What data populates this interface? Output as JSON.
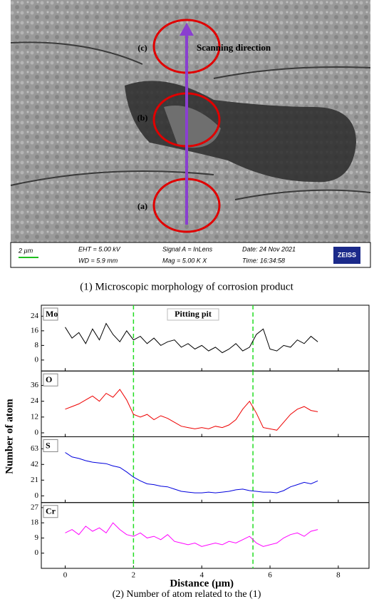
{
  "figure": {
    "image": {
      "labels": [
        "(c)",
        "(b)",
        "(a)"
      ],
      "arrow_label": "Scanning direction",
      "info": {
        "scale": "2 µm",
        "eht": "EHT =  5.00 kV",
        "wd": "WD =  5.9 mm",
        "signal": "Signal A = InLens",
        "mag": "Mag =  5.00 K X",
        "date": "Date: 24 Nov 2021",
        "time": "Time: 16:34:58",
        "brand": "ZEISS"
      }
    },
    "caption_top": "(1) Microscopic morphology of corrosion product",
    "ylabel": "Number of atom",
    "caption_bottom": "(2) Number of atom related to the (1)"
  },
  "chart_data": [
    {
      "type": "line",
      "annotation": "Pitting pit",
      "vlines": [
        2,
        5.5
      ],
      "x": [
        0,
        0.2,
        0.4,
        0.6,
        0.8,
        1,
        1.2,
        1.4,
        1.6,
        1.8,
        2,
        2.2,
        2.4,
        2.6,
        2.8,
        3,
        3.2,
        3.4,
        3.6,
        3.8,
        4,
        4.2,
        4.4,
        4.6,
        4.8,
        5,
        5.2,
        5.4,
        5.6,
        5.8,
        6,
        6.2,
        6.4,
        6.6,
        6.8,
        7,
        7.2,
        7.4
      ],
      "xlim": [
        -0.7,
        8.9
      ],
      "ylim": [
        -6,
        30
      ],
      "yticks": [
        0,
        8,
        16,
        24
      ],
      "series": [
        {
          "name": "Mo",
          "color": "#000000",
          "values": [
            18,
            12,
            15,
            9,
            17,
            11,
            20,
            14,
            10,
            16,
            11,
            13,
            9,
            12,
            8,
            10,
            11,
            7,
            9,
            6,
            8,
            5,
            7,
            4,
            6,
            9,
            5,
            7,
            14,
            17,
            6,
            5,
            8,
            7,
            11,
            9,
            13,
            10
          ]
        }
      ]
    },
    {
      "type": "line",
      "vlines": [
        2,
        5.5
      ],
      "x": [
        0,
        0.2,
        0.4,
        0.6,
        0.8,
        1,
        1.2,
        1.4,
        1.6,
        1.8,
        2,
        2.2,
        2.4,
        2.6,
        2.8,
        3,
        3.2,
        3.4,
        3.6,
        3.8,
        4,
        4.2,
        4.4,
        4.6,
        4.8,
        5,
        5.2,
        5.4,
        5.6,
        5.8,
        6,
        6.2,
        6.4,
        6.6,
        6.8,
        7,
        7.2,
        7.4
      ],
      "xlim": [
        -0.7,
        8.9
      ],
      "ylim": [
        -3,
        47
      ],
      "yticks": [
        0,
        12,
        24,
        36
      ],
      "series": [
        {
          "name": "O",
          "color": "#ee0000",
          "values": [
            18,
            20,
            22,
            25,
            28,
            24,
            30,
            27,
            33,
            25,
            14,
            12,
            14,
            10,
            13,
            11,
            8,
            5,
            4,
            3,
            4,
            3,
            5,
            4,
            6,
            10,
            18,
            24,
            15,
            4,
            3,
            2,
            8,
            14,
            18,
            20,
            17,
            16
          ]
        }
      ]
    },
    {
      "type": "line",
      "vlines": [
        2,
        5.5
      ],
      "x": [
        0,
        0.2,
        0.4,
        0.6,
        0.8,
        1,
        1.2,
        1.4,
        1.6,
        1.8,
        2,
        2.2,
        2.4,
        2.6,
        2.8,
        3,
        3.2,
        3.4,
        3.6,
        3.8,
        4,
        4.2,
        4.4,
        4.6,
        4.8,
        5,
        5.2,
        5.4,
        5.6,
        5.8,
        6,
        6.2,
        6.4,
        6.6,
        6.8,
        7,
        7.2,
        7.4
      ],
      "xlim": [
        -0.7,
        8.9
      ],
      "ylim": [
        -9,
        79
      ],
      "yticks": [
        0,
        21,
        42,
        63
      ],
      "series": [
        {
          "name": "S",
          "color": "#0000dd",
          "values": [
            58,
            52,
            50,
            47,
            45,
            44,
            43,
            40,
            38,
            32,
            25,
            20,
            16,
            15,
            13,
            12,
            9,
            6,
            5,
            4,
            4,
            5,
            4,
            5,
            6,
            8,
            9,
            7,
            6,
            5,
            5,
            4,
            7,
            12,
            15,
            18,
            16,
            20
          ]
        }
      ]
    },
    {
      "type": "line",
      "vlines": [
        2,
        5.5
      ],
      "xlabel": "Distance (μm)",
      "x": [
        0,
        0.2,
        0.4,
        0.6,
        0.8,
        1,
        1.2,
        1.4,
        1.6,
        1.8,
        2,
        2.2,
        2.4,
        2.6,
        2.8,
        3,
        3.2,
        3.4,
        3.6,
        3.8,
        4,
        4.2,
        4.4,
        4.6,
        4.8,
        5,
        5.2,
        5.4,
        5.6,
        5.8,
        6,
        6.2,
        6.4,
        6.6,
        6.8,
        7,
        7.2,
        7.4
      ],
      "xlim": [
        -0.7,
        8.9
      ],
      "xticks": [
        0,
        2,
        4,
        6,
        8
      ],
      "ylim": [
        -9,
        30
      ],
      "yticks": [
        0,
        9,
        18,
        27
      ],
      "series": [
        {
          "name": "Cr",
          "color": "#ff00ff",
          "values": [
            12,
            14,
            11,
            16,
            13,
            15,
            12,
            18,
            14,
            11,
            10,
            12,
            9,
            10,
            8,
            11,
            7,
            6,
            5,
            6,
            4,
            5,
            6,
            5,
            7,
            6,
            8,
            10,
            6,
            4,
            5,
            6,
            9,
            11,
            12,
            10,
            13,
            14
          ]
        }
      ]
    }
  ]
}
